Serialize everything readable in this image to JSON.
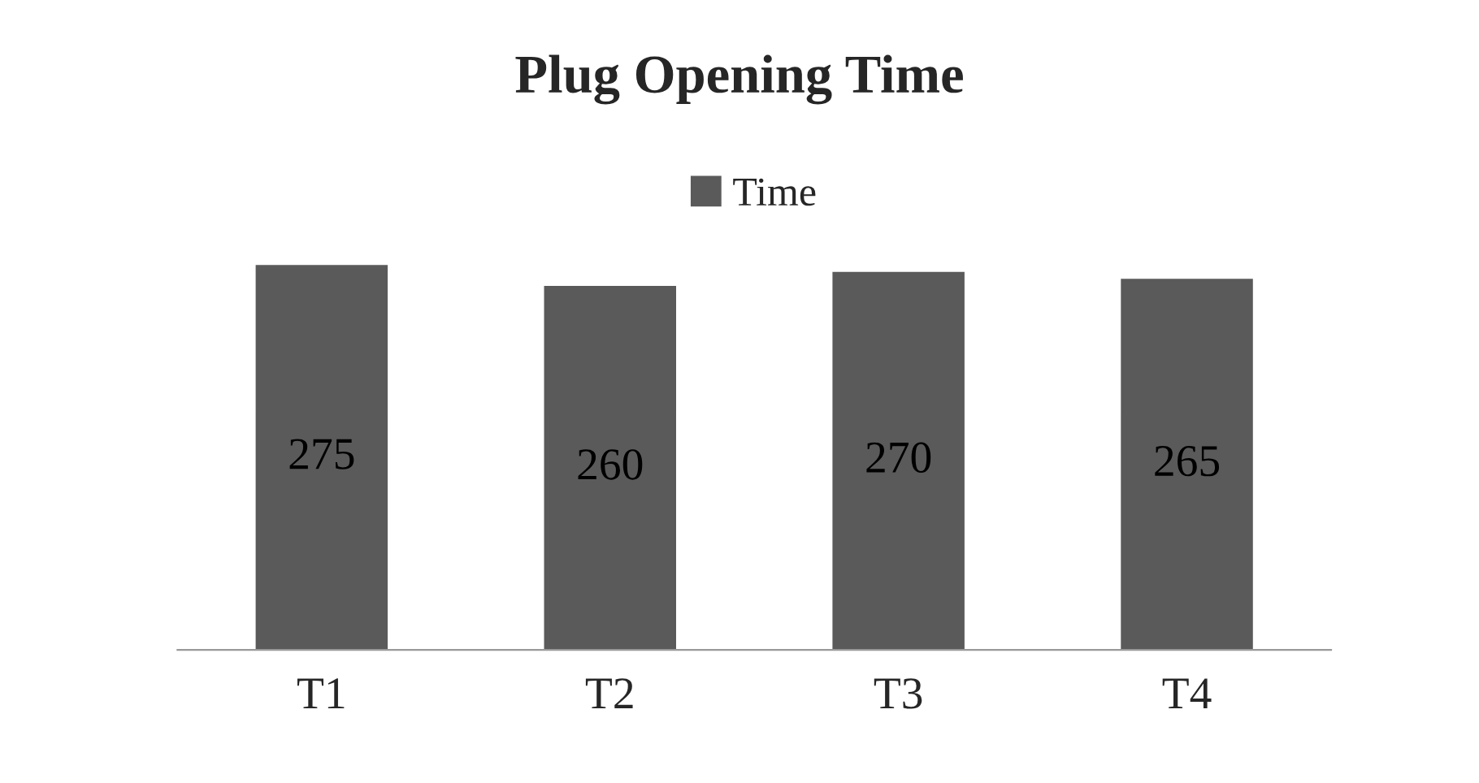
{
  "chart_data": {
    "type": "bar",
    "title": "Plug Opening Time",
    "categories": [
      "T1",
      "T2",
      "T3",
      "T4"
    ],
    "series": [
      {
        "name": "Time",
        "color": "#5a5a5a",
        "values": [
          275,
          260,
          270,
          265
        ]
      }
    ],
    "data_labels": true,
    "legend": "top",
    "grid": false
  }
}
